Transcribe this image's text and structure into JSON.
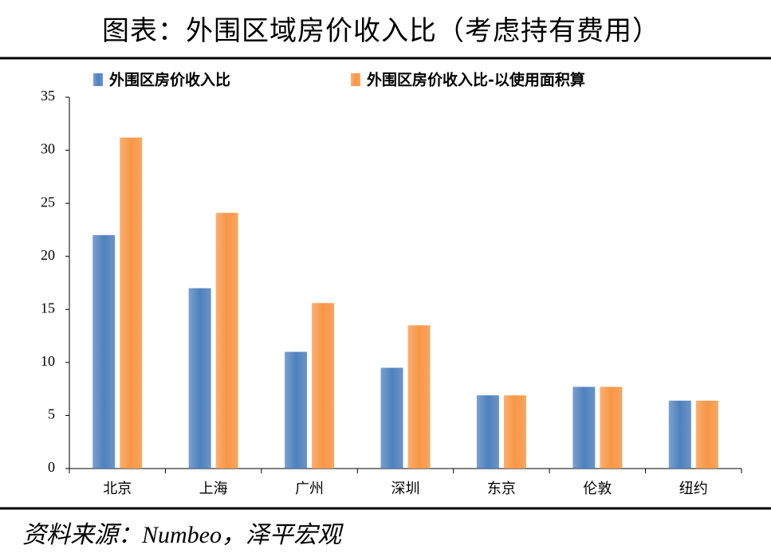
{
  "chart_data": {
    "type": "bar",
    "title": "图表：外围区域房价收入比（考虑持有费用）",
    "source": "资料来源：Numbeo，泽平宏观",
    "categories": [
      "北京",
      "上海",
      "广州",
      "深圳",
      "东京",
      "伦敦",
      "纽约"
    ],
    "series": [
      {
        "name": "外围区房价收入比",
        "color": "#4f81bd",
        "values": [
          22,
          17,
          11,
          9.5,
          6.9,
          7.7,
          6.4
        ]
      },
      {
        "name": "外围区房价收入比-以使用面积算",
        "color": "#f79646",
        "values": [
          31.2,
          24.1,
          15.6,
          13.5,
          6.9,
          7.7,
          6.4
        ]
      }
    ],
    "ylim": [
      0,
      35
    ],
    "yticks": [
      0,
      5,
      10,
      15,
      20,
      25,
      30,
      35
    ],
    "grid": false,
    "legend": "top"
  }
}
